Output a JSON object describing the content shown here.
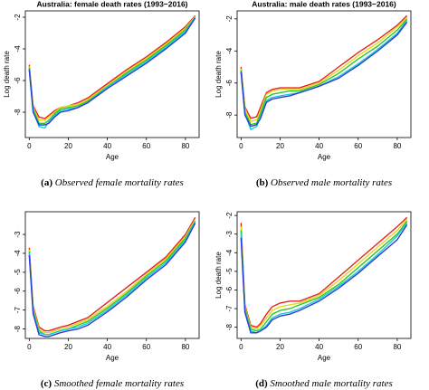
{
  "chart_data": [
    {
      "type": "line",
      "title": "Australia: female death rates (1993−2016)",
      "xlabel": "Age",
      "ylabel": "Log death rate",
      "caption_label": "(a)",
      "caption": "Observed female mortality rates",
      "x": [
        0,
        2,
        5,
        8,
        10,
        13,
        16,
        20,
        25,
        30,
        40,
        50,
        60,
        70,
        80,
        85
      ],
      "xlim": [
        -2,
        87
      ],
      "xticks": [
        0,
        20,
        40,
        60,
        80
      ],
      "ylim": [
        -9.6,
        -1.6
      ],
      "yticks": [
        -2,
        -4,
        -6,
        -8
      ],
      "series": [
        {
          "color": "#e8211c",
          "values": [
            -5.0,
            -7.6,
            -8.3,
            -8.4,
            -8.2,
            -7.9,
            -7.7,
            -7.6,
            -7.4,
            -7.1,
            -6.2,
            -5.3,
            -4.5,
            -3.6,
            -2.6,
            -1.9
          ]
        },
        {
          "color": "#e5d51a",
          "values": [
            -5.1,
            -7.7,
            -8.5,
            -8.5,
            -8.3,
            -8.0,
            -7.7,
            -7.6,
            -7.5,
            -7.2,
            -6.3,
            -5.4,
            -4.6,
            -3.7,
            -2.7,
            -1.95
          ]
        },
        {
          "color": "#2fc52a",
          "values": [
            -5.2,
            -7.8,
            -8.7,
            -8.7,
            -8.5,
            -8.1,
            -7.8,
            -7.7,
            -7.6,
            -7.3,
            -6.4,
            -5.5,
            -4.7,
            -3.8,
            -2.8,
            -2.0
          ]
        },
        {
          "color": "#1cc8d8",
          "values": [
            -5.3,
            -7.9,
            -8.9,
            -9.0,
            -8.6,
            -8.2,
            -7.9,
            -7.8,
            -7.7,
            -7.4,
            -6.4,
            -5.6,
            -4.8,
            -3.9,
            -2.9,
            -2.0
          ]
        },
        {
          "color": "#2a3fd6",
          "values": [
            -5.3,
            -8.0,
            -8.8,
            -8.8,
            -8.7,
            -8.3,
            -8.0,
            -7.9,
            -7.7,
            -7.4,
            -6.5,
            -5.7,
            -4.9,
            -4.0,
            -3.0,
            -2.05
          ]
        }
      ]
    },
    {
      "type": "line",
      "title": "Australia: male death rates (1993−2016)",
      "xlabel": "Age",
      "ylabel": "Log death rate",
      "caption_label": "(b)",
      "caption": "Observed male mortality rates",
      "x": [
        0,
        2,
        5,
        8,
        10,
        13,
        16,
        20,
        25,
        30,
        40,
        50,
        60,
        70,
        80,
        85
      ],
      "xlim": [
        -2,
        87
      ],
      "xticks": [
        0,
        20,
        40,
        60,
        80
      ],
      "ylim": [
        -9.4,
        -1.5
      ],
      "yticks": [
        -2,
        -4,
        -6,
        -8
      ],
      "series": [
        {
          "color": "#e8211c",
          "values": [
            -5.0,
            -7.5,
            -8.2,
            -8.1,
            -7.5,
            -6.6,
            -6.4,
            -6.3,
            -6.3,
            -6.3,
            -5.9,
            -5.0,
            -4.1,
            -3.3,
            -2.4,
            -1.8
          ]
        },
        {
          "color": "#e5d51a",
          "values": [
            -5.1,
            -7.6,
            -8.4,
            -8.3,
            -7.7,
            -6.7,
            -6.5,
            -6.4,
            -6.4,
            -6.4,
            -6.0,
            -5.2,
            -4.3,
            -3.5,
            -2.5,
            -1.9
          ]
        },
        {
          "color": "#2fc52a",
          "values": [
            -5.2,
            -7.8,
            -8.6,
            -8.5,
            -7.9,
            -6.9,
            -6.7,
            -6.6,
            -6.5,
            -6.5,
            -6.1,
            -5.4,
            -4.5,
            -3.7,
            -2.7,
            -2.0
          ]
        },
        {
          "color": "#1cc8d8",
          "values": [
            -5.3,
            -7.9,
            -8.9,
            -8.7,
            -8.1,
            -7.1,
            -6.9,
            -6.8,
            -6.7,
            -6.6,
            -6.2,
            -5.6,
            -4.8,
            -3.9,
            -2.9,
            -2.1
          ]
        },
        {
          "color": "#2a3fd6",
          "values": [
            -5.3,
            -8.0,
            -8.7,
            -8.6,
            -8.2,
            -7.2,
            -7.0,
            -6.9,
            -6.8,
            -6.6,
            -6.2,
            -5.7,
            -4.9,
            -4.0,
            -3.0,
            -2.2
          ]
        }
      ]
    },
    {
      "type": "line",
      "xlabel": "Age",
      "caption_label": "(c)",
      "caption": "Smoothed female mortality rates",
      "x": [
        0,
        2,
        5,
        8,
        10,
        13,
        16,
        20,
        25,
        30,
        40,
        50,
        60,
        70,
        80,
        85
      ],
      "xlim": [
        -2,
        87
      ],
      "xticks": [
        0,
        20,
        40,
        60,
        80
      ],
      "ylim": [
        -8.5,
        -1.8
      ],
      "yticks": [
        -3,
        -4,
        -5,
        -6,
        -7,
        -8
      ],
      "series": [
        {
          "color": "#e8211c",
          "values": [
            -3.7,
            -6.8,
            -7.9,
            -8.1,
            -8.1,
            -8.0,
            -7.9,
            -7.8,
            -7.6,
            -7.4,
            -6.6,
            -5.8,
            -5.0,
            -4.2,
            -3.0,
            -2.1
          ]
        },
        {
          "color": "#e5d51a",
          "values": [
            -3.8,
            -6.9,
            -8.0,
            -8.2,
            -8.2,
            -8.1,
            -8.0,
            -7.9,
            -7.7,
            -7.5,
            -6.8,
            -6.0,
            -5.1,
            -4.3,
            -3.1,
            -2.2
          ]
        },
        {
          "color": "#2fc52a",
          "values": [
            -3.9,
            -7.0,
            -8.1,
            -8.3,
            -8.3,
            -8.2,
            -8.1,
            -8.0,
            -7.8,
            -7.6,
            -6.9,
            -6.1,
            -5.2,
            -4.4,
            -3.2,
            -2.3
          ]
        },
        {
          "color": "#1cc8d8",
          "values": [
            -4.0,
            -7.1,
            -8.2,
            -8.3,
            -8.3,
            -8.2,
            -8.1,
            -8.0,
            -7.9,
            -7.7,
            -7.0,
            -6.2,
            -5.3,
            -4.5,
            -3.3,
            -2.3
          ]
        },
        {
          "color": "#2a3fd6",
          "values": [
            -4.1,
            -7.2,
            -8.3,
            -8.4,
            -8.4,
            -8.3,
            -8.2,
            -8.1,
            -8.0,
            -7.8,
            -7.1,
            -6.3,
            -5.4,
            -4.6,
            -3.4,
            -2.4
          ]
        }
      ]
    },
    {
      "type": "line",
      "xlabel": "Age",
      "ylabel": "Log death rate",
      "caption_label": "(d)",
      "caption": "Smoothed male mortality rates",
      "x": [
        0,
        2,
        5,
        8,
        10,
        13,
        16,
        20,
        25,
        30,
        40,
        50,
        60,
        70,
        80,
        85
      ],
      "xlim": [
        -2,
        87
      ],
      "xticks": [
        0,
        20,
        40,
        60,
        80
      ],
      "ylim": [
        -8.6,
        -1.8
      ],
      "yticks": [
        -2,
        -3,
        -4,
        -5,
        -6,
        -7,
        -8
      ],
      "series": [
        {
          "color": "#e8211c",
          "values": [
            -2.4,
            -6.8,
            -7.9,
            -8.0,
            -7.8,
            -7.3,
            -6.9,
            -6.7,
            -6.6,
            -6.6,
            -6.2,
            -5.3,
            -4.4,
            -3.5,
            -2.6,
            -2.1
          ]
        },
        {
          "color": "#e5d51a",
          "values": [
            -2.6,
            -6.9,
            -8.0,
            -8.1,
            -7.9,
            -7.5,
            -7.1,
            -6.9,
            -6.8,
            -6.7,
            -6.3,
            -5.5,
            -4.6,
            -3.7,
            -2.8,
            -2.2
          ]
        },
        {
          "color": "#2fc52a",
          "values": [
            -2.8,
            -7.0,
            -8.1,
            -8.2,
            -8.1,
            -7.7,
            -7.3,
            -7.1,
            -7.0,
            -6.8,
            -6.4,
            -5.7,
            -4.8,
            -3.9,
            -3.0,
            -2.3
          ]
        },
        {
          "color": "#1cc8d8",
          "values": [
            -3.0,
            -7.1,
            -8.2,
            -8.3,
            -8.2,
            -7.9,
            -7.5,
            -7.3,
            -7.2,
            -7.0,
            -6.5,
            -5.8,
            -5.0,
            -4.1,
            -3.1,
            -2.4
          ]
        },
        {
          "color": "#2a3fd6",
          "values": [
            -3.2,
            -7.2,
            -8.3,
            -8.3,
            -8.2,
            -8.0,
            -7.6,
            -7.4,
            -7.3,
            -7.1,
            -6.6,
            -5.9,
            -5.1,
            -4.2,
            -3.3,
            -2.5
          ]
        }
      ]
    }
  ]
}
